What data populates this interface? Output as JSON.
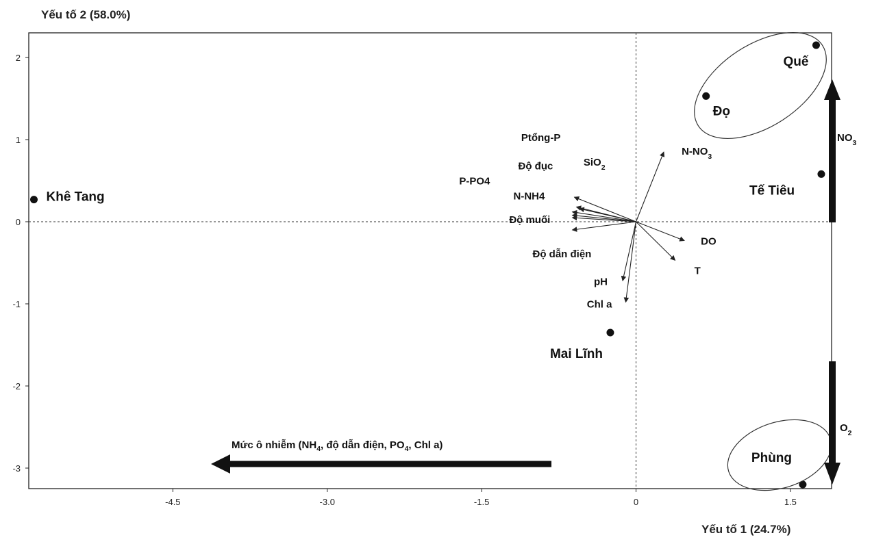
{
  "chart_data": {
    "type": "scatter",
    "title": "",
    "xlabel": "Yếu tố 1 (24.7%)",
    "ylabel": "Yếu tố 2 (58.0%)",
    "xlim": [
      -5.9,
      1.9
    ],
    "ylim": [
      -3.25,
      2.3
    ],
    "x_ticks": [
      {
        "value": -4.5,
        "label": "-4.5"
      },
      {
        "value": -3.0,
        "label": "-3.0"
      },
      {
        "value": -1.5,
        "label": "-1.5"
      },
      {
        "value": 0,
        "label": "0"
      },
      {
        "value": 1.5,
        "label": "1.5"
      }
    ],
    "y_ticks": [
      {
        "value": 2,
        "label": "2"
      },
      {
        "value": 1,
        "label": "1"
      },
      {
        "value": 0,
        "label": "0"
      },
      {
        "value": -1,
        "label": "-1"
      },
      {
        "value": -2,
        "label": "-2"
      },
      {
        "value": -3,
        "label": "-3"
      }
    ],
    "grid": false,
    "sites": [
      {
        "name": "Khê Tang",
        "x": -5.85,
        "y": 0.27
      },
      {
        "name": "Quế",
        "x": 1.75,
        "y": 2.15
      },
      {
        "name": "Đọ",
        "x": 0.68,
        "y": 1.53
      },
      {
        "name": "Tế Tiêu",
        "x": 1.8,
        "y": 0.58
      },
      {
        "name": "Mai Lĩnh",
        "x": -0.25,
        "y": -1.35
      },
      {
        "name": "Phùng",
        "x": 1.62,
        "y": -3.2
      }
    ],
    "vectors": [
      {
        "name": "Ptổng-P",
        "x": -0.6,
        "y": 0.3
      },
      {
        "name": "Độ đục",
        "x": -0.58,
        "y": 0.18
      },
      {
        "name": "SiO",
        "sub": "2",
        "x": -0.55,
        "y": 0.16
      },
      {
        "name": "P-PO4",
        "x": -0.62,
        "y": 0.12
      },
      {
        "name": "N-NH4",
        "x": -0.62,
        "y": 0.08
      },
      {
        "name": "Độ muối",
        "x": -0.62,
        "y": 0.05
      },
      {
        "name": "Độ dẫn điện",
        "x": -0.62,
        "y": -0.1
      },
      {
        "name": "N-NO",
        "sub": "3",
        "x": 0.27,
        "y": 0.85
      },
      {
        "name": "DO",
        "x": 0.47,
        "y": -0.23
      },
      {
        "name": "T",
        "x": 0.38,
        "y": -0.47
      },
      {
        "name": "pH",
        "x": -0.13,
        "y": -0.72
      },
      {
        "name": "Chl a",
        "x": -0.1,
        "y": -0.98
      }
    ],
    "annotations": [
      {
        "name": "pollution",
        "text": "Mức ô nhiễm (NH",
        "sub1": "4",
        "mid": ", độ dẫn điện, PO",
        "sub2": "4",
        "end": ", Chl a)"
      },
      {
        "name": "no3",
        "text": "NO",
        "sub": "3"
      },
      {
        "name": "o2",
        "text": "O",
        "sub": "2"
      }
    ]
  }
}
